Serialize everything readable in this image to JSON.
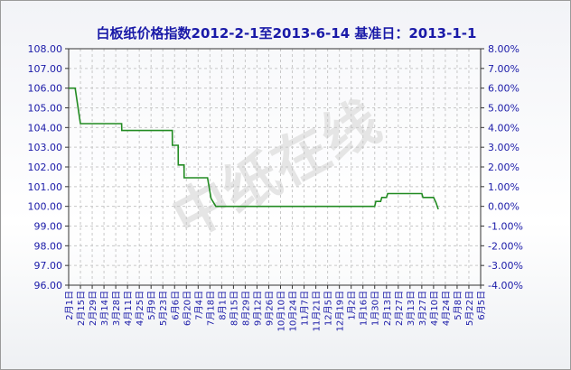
{
  "chart_data": {
    "type": "line",
    "title": "白板纸价格指数2012-2-1至2013-6-14 基准日：2013-1-1",
    "watermark": "中纸在线",
    "xlabel": "",
    "ylabel": "",
    "ylim": [
      96,
      108
    ],
    "y_ticks": [
      "108.00",
      "107.00",
      "106.00",
      "105.00",
      "104.00",
      "103.00",
      "102.00",
      "101.00",
      "100.00",
      "99.00",
      "98.00",
      "97.00",
      "96.00"
    ],
    "y2lim": [
      -4,
      8
    ],
    "y2_ticks": [
      "8.00%",
      "7.00%",
      "6.00%",
      "5.00%",
      "4.00%",
      "3.00%",
      "2.00%",
      "1.00%",
      "0.00%",
      "-1.00%",
      "-2.00%",
      "-3.00%",
      "-4.00%"
    ],
    "categories": [
      "2月1日",
      "2月15日",
      "2月29日",
      "3月14日",
      "3月28日",
      "4月11日",
      "4月25日",
      "5月9日",
      "5月23日",
      "6月6日",
      "6月20日",
      "7月4日",
      "7月18日",
      "8月1日",
      "8月15日",
      "8月29日",
      "9月12日",
      "9月26日",
      "10月10日",
      "10月24日",
      "11月7日",
      "11月21日",
      "12月5日",
      "12月19日",
      "1月2日",
      "1月16日",
      "1月30日",
      "2月13日",
      "2月27日",
      "3月13日",
      "3月27日",
      "4月10日",
      "4月24日",
      "5月8日",
      "5月22日",
      "6月5日"
    ],
    "grid": true,
    "series": [
      {
        "color": "#228b22",
        "x": [
          0,
          0.55,
          1.0,
          1.01,
          4.5,
          4.51,
          8.8,
          8.81,
          9.3,
          9.31,
          9.8,
          9.81,
          10.3,
          10.31,
          11.8,
          12.1,
          12.5,
          25.8,
          26.0,
          26.1,
          26.5,
          26.6,
          27.0,
          27.1,
          30.0,
          30.1,
          31.0,
          31.2,
          31.4
        ],
        "values": [
          106.0,
          106.0,
          104.2,
          104.2,
          104.2,
          103.85,
          103.85,
          103.1,
          103.1,
          102.1,
          102.1,
          101.45,
          101.45,
          101.45,
          101.45,
          100.4,
          100.0,
          100.0,
          100.0,
          100.25,
          100.25,
          100.45,
          100.45,
          100.65,
          100.65,
          100.45,
          100.45,
          100.2,
          99.85
        ]
      }
    ]
  }
}
